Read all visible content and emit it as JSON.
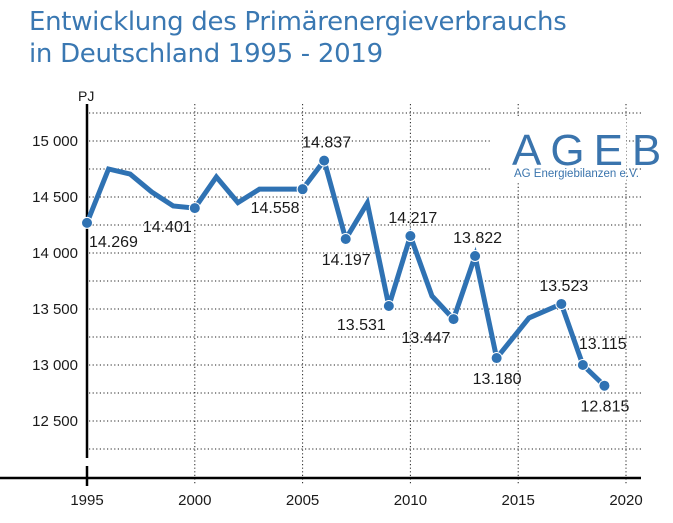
{
  "chart_data": {
    "type": "line",
    "title": "Entwicklung des Primärenergieverbrauchs in Deutschland 1995 - 2019",
    "title_lines": [
      "Entwicklung des Primärenergieverbrauchs",
      "in Deutschland 1995 - 2019"
    ],
    "xlabel": "",
    "ylabel": "PJ",
    "xlim": [
      1995,
      2020
    ],
    "ylim": [
      12250,
      15250
    ],
    "y_axis_break": true,
    "grid": true,
    "x_ticks": [
      1995,
      2000,
      2005,
      2010,
      2015,
      2020
    ],
    "x_tick_labels": [
      "1995",
      "2000",
      "2005",
      "2010",
      "2015",
      "2020"
    ],
    "y_ticks": [
      15000,
      14500,
      14000,
      13500,
      13000,
      12500
    ],
    "y_tick_labels": [
      "15 000",
      "14 500",
      "14 000",
      "13 500",
      "13 000",
      "12 500"
    ],
    "series": [
      {
        "name": "Primärenergieverbrauch",
        "color": "#2f72b3",
        "x": [
          1995,
          1996,
          1997,
          1998,
          1999,
          2000,
          2001,
          2002,
          2003,
          2004,
          2005,
          2006,
          2007,
          2008,
          2009,
          2010,
          2011,
          2012,
          2013,
          2014,
          2015.5,
          2017,
          2018,
          2019
        ],
        "values": [
          14269,
          14750,
          14705,
          14545,
          14420,
          14401,
          14680,
          14450,
          14570,
          14570,
          14558,
          14837,
          14197,
          14446,
          13531,
          14217,
          13616,
          13447,
          13822,
          13180,
          13420,
          13523,
          13115,
          12815
        ]
      }
    ],
    "annotations": [
      {
        "x": 1995,
        "value": 14269,
        "label": "14.269",
        "position": "below-right"
      },
      {
        "x": 2000,
        "value": 14401,
        "label": "14.401",
        "position": "below-left"
      },
      {
        "x": 2005,
        "value": 14558,
        "label": "14.558",
        "position": "below-left"
      },
      {
        "x": 2006,
        "value": 14837,
        "label": "14.837",
        "position": "above"
      },
      {
        "x": 2007,
        "value": 14197,
        "label": "14.197",
        "position": "below"
      },
      {
        "x": 2009,
        "value": 13531,
        "label": "13.531",
        "position": "below-left"
      },
      {
        "x": 2010,
        "value": 14217,
        "label": "14.217",
        "position": "above"
      },
      {
        "x": 2012,
        "value": 13447,
        "label": "13.447",
        "position": "below-left"
      },
      {
        "x": 2013,
        "value": 13822,
        "label": "13.822",
        "position": "above"
      },
      {
        "x": 2014,
        "value": 13180,
        "label": "13.180",
        "position": "below"
      },
      {
        "x": 2017,
        "value": 13523,
        "label": "13.523",
        "position": "above"
      },
      {
        "x": 2018,
        "value": 13115,
        "label": "13.115",
        "position": "above-right"
      },
      {
        "x": 2019,
        "value": 12815,
        "label": "12.815",
        "position": "below"
      }
    ],
    "legend": null
  },
  "logo": {
    "name": "AGEB",
    "subtitle": "AG Energiebilanzen e.V.",
    "color": "#3a74ad"
  }
}
